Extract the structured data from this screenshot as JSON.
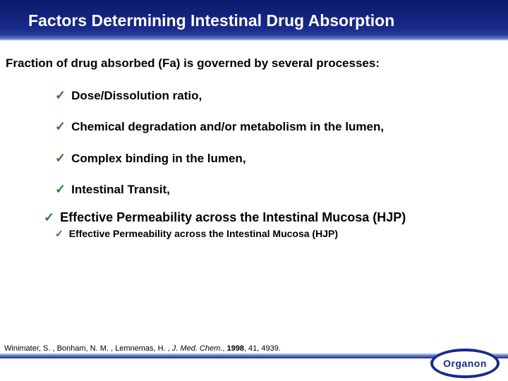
{
  "title": "Factors Determining Intestinal Drug Absorption",
  "subheading": "Fraction of drug absorbed (Fa) is governed by several processes:",
  "bullets": [
    "Dose/Dissolution ratio,",
    "Chemical degradation and/or metabolism in the lumen,",
    "Complex binding in the lumen,",
    "Intestinal Transit,"
  ],
  "highlight": "Effective Permeability across the Intestinal Mucosa (HJP)",
  "highlight_sub": "Effective Permeability across the Intestinal Mucosa (HJP)",
  "checkmark": "✓",
  "citation": {
    "authors": "Winimater, S. , Bonham, N. M. , Lemnemas, H. , ",
    "journal": "J. Med. Chem.",
    "sep": ", ",
    "year": "1998",
    "rest": ", 41, 4939."
  },
  "logo_text": "Organon",
  "colors": {
    "title_bg": "#0a1a6b",
    "check": "#2a7a2a",
    "logo": "#1a2a8b"
  }
}
